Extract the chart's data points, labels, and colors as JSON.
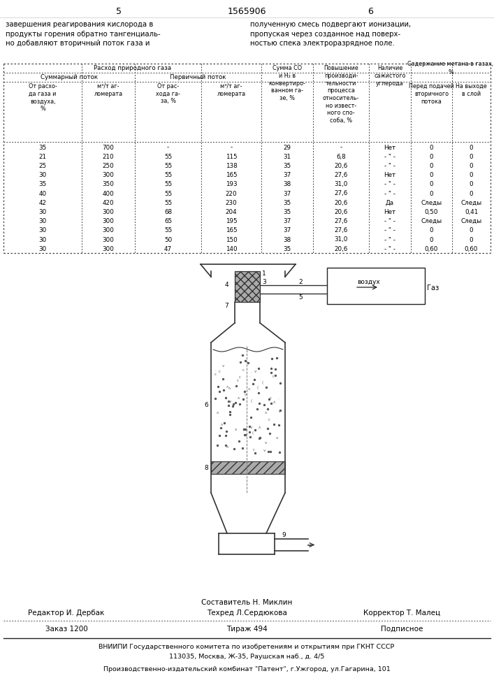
{
  "page_num_left": "5",
  "page_num_center": "1565906",
  "page_num_right": "6",
  "top_text_left": "завершения реагирования кислорода в\nпродукты горения обратно тангенциаль-\nно добавляют вторичный поток газа и",
  "top_text_right": "полученную смесь подвергают ионизации,\nпропуская через созданное над поверх-\nностью спека электроразрядное поле.",
  "table_data": [
    [
      "35",
      "700",
      "-",
      "-",
      "29",
      "-",
      "Нет",
      "0",
      "0"
    ],
    [
      "21",
      "210",
      "55",
      "115",
      "31",
      "6,8",
      "- \" -",
      "0",
      "0"
    ],
    [
      "25",
      "250",
      "55",
      "138",
      "35",
      "20,6",
      "- \" -",
      "0",
      "0"
    ],
    [
      "30",
      "300",
      "55",
      "165",
      "37",
      "27,6",
      "Нет",
      "0",
      "0"
    ],
    [
      "35",
      "350",
      "55",
      "193",
      "38",
      "31,0",
      "- \" -",
      "0",
      "0"
    ],
    [
      "40",
      "400",
      "55",
      "220",
      "37",
      "27,6",
      "- \" -",
      "0",
      "0"
    ],
    [
      "42",
      "420",
      "55",
      "230",
      "35",
      "20,6",
      "Да",
      "Следы",
      "Следы"
    ],
    [
      "30",
      "300",
      "68",
      "204",
      "35",
      "20,6",
      "Нет",
      "0,50",
      "0,41"
    ],
    [
      "30",
      "300",
      "65",
      "195",
      "37",
      "27,6",
      "- \" -",
      "Следы",
      "Следы"
    ],
    [
      "30",
      "300",
      "55",
      "165",
      "37",
      "27,6",
      "- \" -",
      "0",
      "0"
    ],
    [
      "30",
      "300",
      "50",
      "150",
      "38",
      "31,0",
      "- \" -",
      "0",
      "0"
    ],
    [
      "30",
      "300",
      "47",
      "140",
      "35",
      "20,6",
      "- \" -",
      "0,60",
      "0,60"
    ]
  ],
  "footer_compiler": "Составитель Н. Миклин",
  "footer_editor": "Редактор И. Дербак",
  "footer_tech": "Техред Л.Сердюкова",
  "footer_corrector": "Корректор Т. Малец",
  "footer_order": "Заказ 1200",
  "footer_circulation": "Тираж 494",
  "footer_subscription": "Подписное",
  "footer_vniiipi": "ВНИИПИ Государственного комитета по изобретениям и открытиям при ГКНТ СССР",
  "footer_address": "113035, Москва, Ж-35, Раушская наб., д. 4/5",
  "footer_production": "Производственно-издательский комбинат \"Патент\", г.Ужгород, ул.Гагарина, 101",
  "bg_color": "#ffffff"
}
